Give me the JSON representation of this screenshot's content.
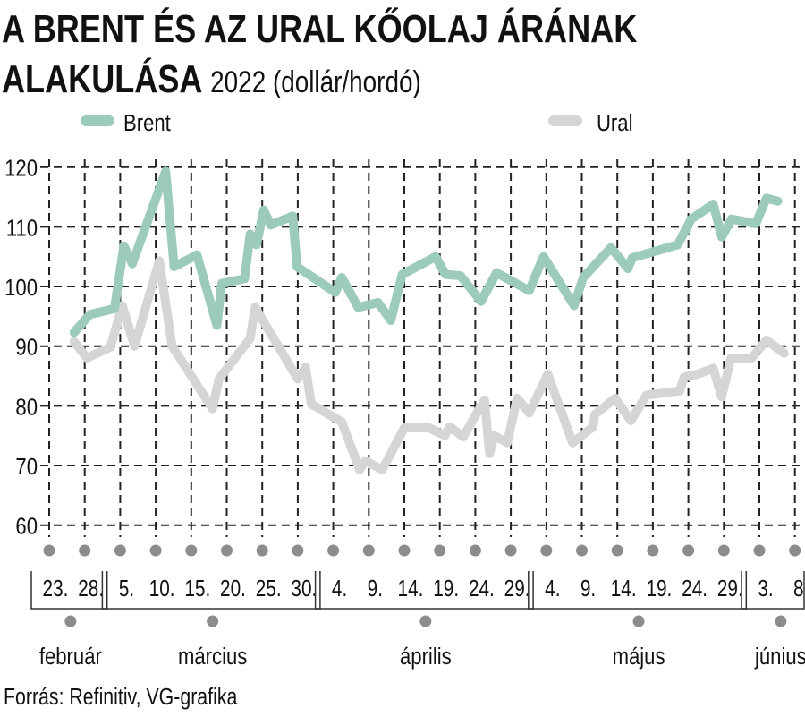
{
  "chart_data": {
    "type": "line",
    "title_line1": "A BRENT ÉS AZ URAL KŐOLAJ ÁRÁNAK",
    "title_line2": "ALAKULÁSA",
    "subtitle": "2022 (dollár/hordó)",
    "xlabel": "",
    "ylabel": "",
    "ylim": [
      60,
      120
    ],
    "yticks": [
      60,
      70,
      80,
      90,
      100,
      110,
      120
    ],
    "grid": true,
    "legend_position": "top",
    "x_unit": "days since február 23.",
    "xlim": [
      0,
      105
    ],
    "x_tick_labels": [
      "23.",
      "28.",
      "5.",
      "10.",
      "15.",
      "20.",
      "25.",
      "30.",
      "4.",
      "9.",
      "14.",
      "19.",
      "24.",
      "29.",
      "4.",
      "9.",
      "14.",
      "19.",
      "24.",
      "29.",
      "3.",
      "8."
    ],
    "months": [
      {
        "label": "február",
        "first_tick": 0,
        "last_tick": 1
      },
      {
        "label": "március",
        "first_tick": 2,
        "last_tick": 7
      },
      {
        "label": "április",
        "first_tick": 8,
        "last_tick": 13
      },
      {
        "label": "május",
        "first_tick": 14,
        "last_tick": 19
      },
      {
        "label": "június",
        "first_tick": 20,
        "last_tick": 21
      }
    ],
    "series": [
      {
        "name": "Brent",
        "color": "#9ccabd",
        "x": [
          3.5,
          5.7,
          9.2,
          10.5,
          11.7,
          16.4,
          17.6,
          20.8,
          23.6,
          24.3,
          27.5,
          28.3,
          29.2,
          30.2,
          31.2,
          34.3,
          34.9,
          40.3,
          41.2,
          43.5,
          46.3,
          48.1,
          49.7,
          54.4,
          55.8,
          57.9,
          60.8,
          63,
          67.6,
          69.6,
          73.9,
          75.2,
          79.1,
          81.5,
          82.1,
          88.5,
          90.4,
          93.5,
          94.7,
          96.1,
          99.5,
          101,
          102.6
        ],
        "values": [
          92.3,
          95.3,
          96.3,
          106.8,
          103.8,
          119.3,
          103.3,
          105.3,
          93.5,
          100.5,
          101.3,
          108.8,
          107,
          112.8,
          110.3,
          111.8,
          103.3,
          99,
          101.5,
          96.5,
          97.3,
          94.3,
          102,
          105,
          102,
          101.8,
          97.5,
          102.3,
          99.3,
          105,
          96.8,
          101.5,
          106.5,
          103,
          104.8,
          107,
          111.3,
          113.8,
          108.3,
          111.3,
          110.5,
          114.8,
          114.3
        ]
      },
      {
        "name": "Ural",
        "color": "#d4d5d6",
        "x": [
          3.5,
          5.3,
          8.6,
          10.3,
          12,
          15.5,
          17.3,
          23,
          23.9,
          28.3,
          29,
          35,
          36.1,
          36.9,
          41.2,
          43.7,
          44.5,
          46.9,
          50,
          53.5,
          55.7,
          56.4,
          58.3,
          61.3,
          62,
          62.7,
          64.5,
          65.9,
          67.6,
          70.2,
          73.7,
          76.6,
          76.8,
          79.7,
          81.9,
          84.1,
          88.8,
          89.4,
          91.3,
          93.5,
          94.7,
          96,
          98.9,
          101,
          103.5
        ],
        "values": [
          90.8,
          88,
          89.8,
          96.8,
          90,
          104.3,
          90,
          79.5,
          84.5,
          91.3,
          96.5,
          84.5,
          86.5,
          80.3,
          77.3,
          69.3,
          70.8,
          69.3,
          76.3,
          76.3,
          75,
          76.5,
          74.8,
          81,
          72,
          75,
          73.8,
          81.3,
          78.8,
          85.3,
          73.8,
          76.5,
          78.5,
          81.3,
          77.5,
          81.8,
          82.5,
          84.8,
          85.3,
          86.3,
          81.5,
          88,
          88,
          91,
          88.8
        ]
      }
    ]
  },
  "source": "Forrás: Refinitiv, VG-grafika"
}
